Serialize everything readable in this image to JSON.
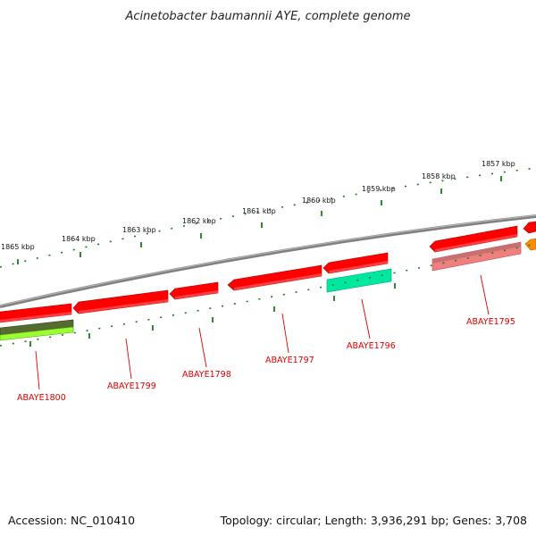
{
  "title": "Acinetobacter baumannii AYE, complete genome",
  "accession": "Accession: NC_010410",
  "topology": "Topology: circular; Length: 3,936,291 bp; Genes: 3,708",
  "tick_labels": [
    "1865 kbp",
    "1864 kbp",
    "1863 kbp",
    "1862 kbp",
    "1861 kbp",
    "1860 kbp",
    "1859 kbp",
    "1858 kbp",
    "1857 kbp"
  ],
  "gene_labels": [
    "ABAYE1800",
    "ABAYE1799",
    "ABAYE1798",
    "ABAYE1797",
    "ABAYE1796",
    "ABAYE1795"
  ],
  "colors": {
    "backbone": "#808080",
    "gene_red": "#ff0000",
    "gene_pink": "#f08080",
    "gene_cyan": "#00e8a0",
    "gene_lime": "#99ff33",
    "gene_olive": "#556b2f",
    "gene_orange": "#ff8c00",
    "tick_green": "#1a7a1a",
    "label_red": "#dd0000"
  }
}
